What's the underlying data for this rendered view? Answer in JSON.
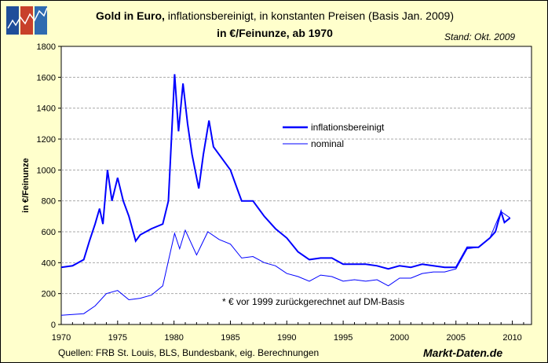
{
  "header": {
    "title_bold": "Gold in Euro,",
    "title_rest": " inflationsbereinigt, in konstanten Preisen (Basis Jan. 2009)",
    "subtitle": "in €/Feinunze, ab 1970",
    "stand": "Stand: Okt. 2009"
  },
  "footer": {
    "sources": "Quellen: FRB St. Louis, BLS, Bundesbank, eig. Berechnungen",
    "brand": "Markt-Daten.de"
  },
  "logo": {
    "icon": "line-chart-logo",
    "colors": [
      "#1F4E9A",
      "#C8402A",
      "#2F6BB0"
    ]
  },
  "chart_data": {
    "type": "line",
    "title": "Gold in Euro, inflationsbereinigt, in konstanten Preisen (Basis Jan. 2009)",
    "ylabel": "in €/Feinunze",
    "xlim": [
      1970,
      2011.7
    ],
    "ylim": [
      0,
      1800
    ],
    "xticks": [
      "1970",
      "1975",
      "1980",
      "1985",
      "1990",
      "1995",
      "2000",
      "2005",
      "2010"
    ],
    "yticks": [
      "0",
      "200",
      "400",
      "600",
      "800",
      "1000",
      "1200",
      "1400",
      "1600",
      "1800"
    ],
    "grid": true,
    "legend": "upper-center-right",
    "annotation": "* € vor 1999 zurückgerechnet auf DM-Basis",
    "series": [
      {
        "name": "inflationsbereinigt",
        "color": "#0000FF",
        "width": 2,
        "x": [
          1970,
          1971,
          1972,
          1972.5,
          1973,
          1973.4,
          1973.7,
          1974.1,
          1974.5,
          1975,
          1975.5,
          1976,
          1976.6,
          1977,
          1978,
          1979,
          1979.5,
          1980.05,
          1980.4,
          1980.8,
          1981.2,
          1981.6,
          1982.2,
          1982.6,
          1983.1,
          1983.5,
          1984,
          1985,
          1985.5,
          1986,
          1987,
          1987.5,
          1988,
          1989,
          1990,
          1991,
          1992,
          1993,
          1994,
          1995,
          1996,
          1997,
          1998,
          1999,
          2000,
          2001,
          2002,
          2003,
          2004,
          2005,
          2006,
          2007,
          2008,
          2008.5,
          2009,
          2009.3,
          2009.8
        ],
        "values": [
          370,
          380,
          420,
          540,
          650,
          750,
          650,
          1000,
          800,
          950,
          800,
          700,
          540,
          580,
          620,
          650,
          800,
          1620,
          1250,
          1560,
          1300,
          1100,
          880,
          1100,
          1320,
          1150,
          1100,
          1000,
          900,
          800,
          800,
          750,
          700,
          620,
          560,
          470,
          420,
          430,
          430,
          390,
          390,
          390,
          380,
          360,
          380,
          370,
          390,
          380,
          370,
          370,
          500,
          500,
          560,
          600,
          730,
          660,
          690
        ]
      },
      {
        "name": "nominal",
        "color": "#0000FF",
        "width": 1,
        "x": [
          1970,
          1972,
          1973,
          1974,
          1975,
          1976,
          1977,
          1978,
          1979,
          1980.05,
          1980.5,
          1981,
          1982,
          1983,
          1984,
          1985,
          1986,
          1987,
          1988,
          1989,
          1990,
          1991,
          1992,
          1993,
          1994,
          1995,
          1996,
          1997,
          1998,
          1999,
          2000,
          2001,
          2002,
          2003,
          2004,
          2005,
          2006,
          2007,
          2008,
          2009,
          2009.8
        ],
        "values": [
          60,
          70,
          120,
          200,
          220,
          160,
          170,
          190,
          250,
          590,
          490,
          610,
          450,
          600,
          550,
          520,
          430,
          440,
          400,
          380,
          330,
          310,
          280,
          320,
          310,
          280,
          290,
          280,
          290,
          250,
          300,
          300,
          330,
          340,
          340,
          360,
          490,
          500,
          560,
          730,
          690
        ]
      }
    ]
  }
}
